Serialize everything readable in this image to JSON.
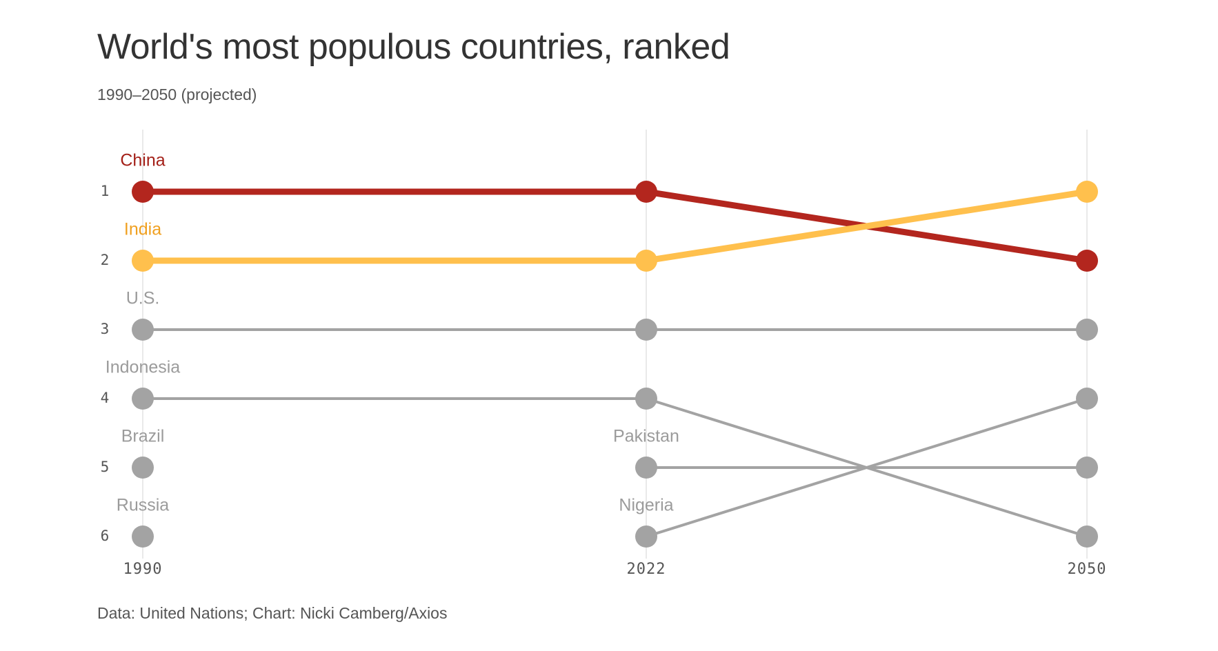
{
  "header": {
    "title": "World's most populous countries, ranked",
    "subtitle": "1990–2050 (projected)"
  },
  "footer": {
    "source": "Data: United Nations; Chart: Nicki Camberg/Axios"
  },
  "colors": {
    "china": "#b3261e",
    "india": "#ffc04d",
    "other": "#a3a3a3",
    "grid": "#e2e2e2",
    "china_label": "#a31f17",
    "india_label": "#f0a020",
    "other_label": "#9b9b9b"
  },
  "chart_data": {
    "type": "line",
    "subtype": "bump",
    "title": "World's most populous countries, ranked",
    "subtitle": "1990–2050 (projected)",
    "x": [
      "1990",
      "2022",
      "2050"
    ],
    "y_ticks": [
      "1",
      "2",
      "3",
      "4",
      "5",
      "6"
    ],
    "ylim": [
      1,
      6
    ],
    "y_inverted": true,
    "grid": "vertical",
    "points": [
      {
        "x": "1990",
        "rank": 1,
        "color_key": "china"
      },
      {
        "x": "1990",
        "rank": 2,
        "color_key": "india"
      },
      {
        "x": "1990",
        "rank": 3,
        "color_key": "other"
      },
      {
        "x": "1990",
        "rank": 4,
        "color_key": "other"
      },
      {
        "x": "1990",
        "rank": 5,
        "color_key": "other"
      },
      {
        "x": "1990",
        "rank": 6,
        "color_key": "other"
      },
      {
        "x": "2022",
        "rank": 1,
        "color_key": "china"
      },
      {
        "x": "2022",
        "rank": 2,
        "color_key": "india"
      },
      {
        "x": "2022",
        "rank": 3,
        "color_key": "other"
      },
      {
        "x": "2022",
        "rank": 4,
        "color_key": "other"
      },
      {
        "x": "2022",
        "rank": 5,
        "color_key": "other"
      },
      {
        "x": "2022",
        "rank": 6,
        "color_key": "other"
      },
      {
        "x": "2050",
        "rank": 1,
        "color_key": "india"
      },
      {
        "x": "2050",
        "rank": 2,
        "color_key": "china"
      },
      {
        "x": "2050",
        "rank": 3,
        "color_key": "other"
      },
      {
        "x": "2050",
        "rank": 4,
        "color_key": "other"
      },
      {
        "x": "2050",
        "rank": 5,
        "color_key": "other"
      },
      {
        "x": "2050",
        "rank": 6,
        "color_key": "other"
      }
    ],
    "lines": [
      {
        "ranks": [
          1,
          1,
          2
        ],
        "from": "1990",
        "color_key": "china",
        "highlight": true
      },
      {
        "ranks": [
          2,
          2,
          1
        ],
        "from": "1990",
        "color_key": "india",
        "highlight": true
      },
      {
        "ranks": [
          3,
          3,
          3
        ],
        "from": "1990",
        "color_key": "other",
        "highlight": false
      },
      {
        "ranks": [
          4,
          4,
          6
        ],
        "from": "1990",
        "color_key": "other",
        "highlight": false
      },
      {
        "ranks": [
          5,
          5
        ],
        "from": "2022",
        "color_key": "other",
        "highlight": false
      },
      {
        "ranks": [
          6,
          4
        ],
        "from": "2022",
        "color_key": "other",
        "highlight": false
      }
    ],
    "labels": [
      {
        "text": "China",
        "x": "1990",
        "rank": 1,
        "color_key": "china_label"
      },
      {
        "text": "India",
        "x": "1990",
        "rank": 2,
        "color_key": "india_label"
      },
      {
        "text": "U.S.",
        "x": "1990",
        "rank": 3,
        "color_key": "other_label"
      },
      {
        "text": "Indonesia",
        "x": "1990",
        "rank": 4,
        "color_key": "other_label"
      },
      {
        "text": "Brazil",
        "x": "1990",
        "rank": 5,
        "color_key": "other_label"
      },
      {
        "text": "Russia",
        "x": "1990",
        "rank": 6,
        "color_key": "other_label"
      },
      {
        "text": "Pakistan",
        "x": "2022",
        "rank": 5,
        "color_key": "other_label"
      },
      {
        "text": "Nigeria",
        "x": "2022",
        "rank": 6,
        "color_key": "other_label"
      }
    ]
  }
}
